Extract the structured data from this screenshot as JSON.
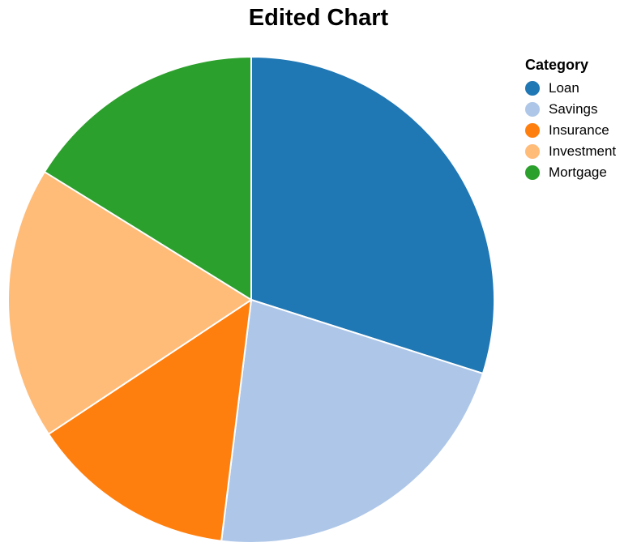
{
  "chart_data": {
    "type": "pie",
    "title": "Edited Chart",
    "legend_title": "Category",
    "legend_position": "top-right",
    "categories": [
      "Loan",
      "Savings",
      "Insurance",
      "Investment",
      "Mortgage"
    ],
    "values": [
      30.5,
      22.5,
      14.0,
      18.5,
      16.5
    ],
    "colors": [
      "#1f77b4",
      "#aec7e8",
      "#ff7f0e",
      "#ffbb78",
      "#2ca02c"
    ]
  }
}
